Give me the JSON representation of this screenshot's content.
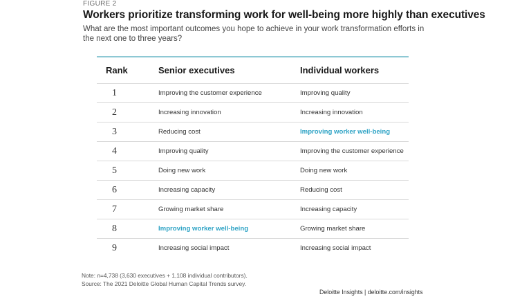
{
  "figure_label": "FIGURE 2",
  "title": "Workers prioritize transforming work for well-being more highly than executives",
  "subtitle": "What are the most important outcomes you hope to achieve in your work transformation efforts in the next one to three years?",
  "table": {
    "headers": [
      "Rank",
      "Senior executives",
      "Individual workers"
    ],
    "rows": [
      {
        "rank": "1",
        "exec": "Improving the customer experience",
        "ind": "Improving quality"
      },
      {
        "rank": "2",
        "exec": "Increasing innovation",
        "ind": "Increasing innovation"
      },
      {
        "rank": "3",
        "exec": "Reducing cost",
        "ind": "Improving worker well-being"
      },
      {
        "rank": "4",
        "exec": "Improving quality",
        "ind": "Improving the customer experience"
      },
      {
        "rank": "5",
        "exec": "Doing new work",
        "ind": "Doing new work"
      },
      {
        "rank": "6",
        "exec": "Increasing capacity",
        "ind": "Reducing cost"
      },
      {
        "rank": "7",
        "exec": "Growing market share",
        "ind": "Increasing capacity"
      },
      {
        "rank": "8",
        "exec": "Improving worker well-being",
        "ind": "Growing market share"
      },
      {
        "rank": "9",
        "exec": "Increasing social impact",
        "ind": "Increasing social impact"
      }
    ]
  },
  "note_line1": "Note: n=4,738 (3,630 executives + 1,108 individual contributors).",
  "note_line2": "Source: The 2021 Deloitte Global Human Capital Trends survey.",
  "credit": "Deloitte Insights | deloitte.com/insights",
  "colors": {
    "highlight": "#2ea3c5",
    "rule": "#8ec8d4"
  }
}
